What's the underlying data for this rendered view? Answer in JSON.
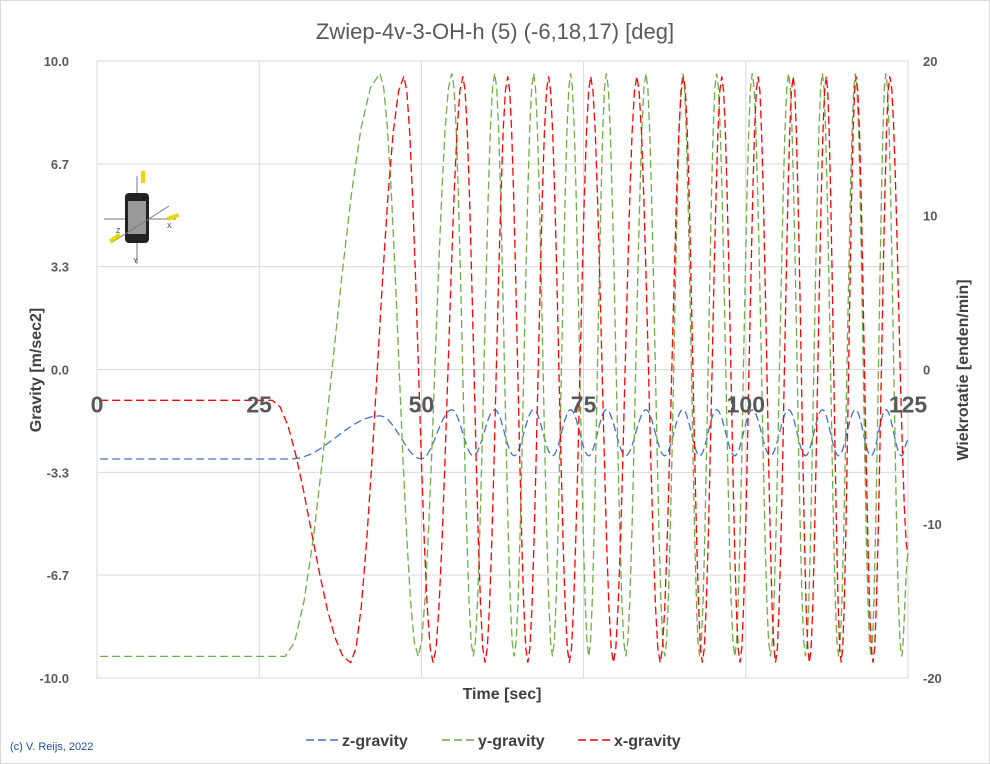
{
  "chart_data": {
    "type": "line",
    "title": "Zwiep-4v-3-OH-h (5) (-6,18,17) [deg]",
    "xlabel": "Time [sec]",
    "ylabel": "Gravity  [m/sec2]",
    "y2label": "Wiekrotatie  [enden/min]",
    "xlim": [
      0,
      125
    ],
    "ylim": [
      -10,
      10
    ],
    "y2lim": [
      -20,
      20
    ],
    "x_ticks": [
      "0",
      "25",
      "50",
      "75",
      "100",
      "125"
    ],
    "y_ticks": [
      "10.0",
      "6.7",
      "3.3",
      "0.0",
      "-3.3",
      "-6.7",
      "-10.0"
    ],
    "y2_ticks": [
      "20",
      "10",
      "0",
      "-10",
      "-20"
    ],
    "grid": true,
    "legend_position": "bottom",
    "note": "(c) V. Reijs, 2022",
    "series": [
      {
        "name": "z-gravity",
        "color": "#4472c4",
        "extrema": [
          [
            0.5,
            -2.9
          ],
          [
            30,
            -2.9
          ],
          [
            43.6,
            -1.5
          ],
          [
            50,
            -2.9
          ],
          [
            54.7,
            -1.3
          ],
          [
            58,
            -2.8
          ],
          [
            61.3,
            -1.3
          ],
          [
            64.3,
            -2.8
          ],
          [
            67.3,
            -1.3
          ],
          [
            70.2,
            -2.8
          ],
          [
            73,
            -1.3
          ],
          [
            75.8,
            -2.8
          ],
          [
            78.5,
            -1.3
          ],
          [
            81.5,
            -2.8
          ],
          [
            84.6,
            -1.3
          ],
          [
            87.5,
            -2.8
          ],
          [
            90.3,
            -1.3
          ],
          [
            92.9,
            -2.8
          ],
          [
            95.5,
            -1.3
          ],
          [
            98.3,
            -2.8
          ],
          [
            101,
            -1.3
          ],
          [
            103.8,
            -2.8
          ],
          [
            106.6,
            -1.3
          ],
          [
            109.2,
            -2.8
          ],
          [
            111.8,
            -1.3
          ],
          [
            114.3,
            -2.8
          ],
          [
            116.9,
            -1.3
          ],
          [
            119.3,
            -2.8
          ],
          [
            121.6,
            -1.3
          ],
          [
            124,
            -2.8
          ],
          [
            125,
            -2.3
          ]
        ]
      },
      {
        "name": "y-gravity",
        "color": "#70ad47",
        "extrema": [
          [
            0.5,
            -9.3
          ],
          [
            29,
            -9.3
          ],
          [
            43.6,
            9.6
          ],
          [
            49.5,
            -9.3
          ],
          [
            54.7,
            9.6
          ],
          [
            58,
            -9.3
          ],
          [
            61.3,
            9.6
          ],
          [
            64.3,
            -9.3
          ],
          [
            67.3,
            9.6
          ],
          [
            70.2,
            -9.3
          ],
          [
            73,
            9.6
          ],
          [
            75.8,
            -9.3
          ],
          [
            78.5,
            9.6
          ],
          [
            81.5,
            -9.3
          ],
          [
            84.6,
            9.6
          ],
          [
            87.5,
            -9.3
          ],
          [
            90.3,
            9.6
          ],
          [
            92.9,
            -9.3
          ],
          [
            95.5,
            9.6
          ],
          [
            98.3,
            -9.3
          ],
          [
            101,
            9.6
          ],
          [
            103.8,
            -9.3
          ],
          [
            106.6,
            9.6
          ],
          [
            109.2,
            -9.3
          ],
          [
            111.8,
            9.6
          ],
          [
            114.3,
            -9.3
          ],
          [
            116.9,
            9.6
          ],
          [
            119.3,
            -9.3
          ],
          [
            121.6,
            9.6
          ],
          [
            124,
            -9.3
          ],
          [
            125,
            -6
          ]
        ]
      },
      {
        "name": "x-gravity",
        "color": "#ff0000",
        "extrema": [
          [
            0.5,
            -1
          ],
          [
            27,
            -1
          ],
          [
            39.1,
            -9.5
          ],
          [
            47.3,
            9.5
          ],
          [
            51.8,
            -9.5
          ],
          [
            56.4,
            9.5
          ],
          [
            59.8,
            -9.5
          ],
          [
            63.3,
            9.5
          ],
          [
            66.4,
            -9.5
          ],
          [
            69.6,
            9.5
          ],
          [
            72.8,
            -9.5
          ],
          [
            76.1,
            9.5
          ],
          [
            79.6,
            -9.5
          ],
          [
            83.2,
            9.5
          ],
          [
            86.8,
            -9.5
          ],
          [
            90.4,
            9.5
          ],
          [
            93.3,
            -9.5
          ],
          [
            96.3,
            9.5
          ],
          [
            99.1,
            -9.5
          ],
          [
            101.9,
            9.5
          ],
          [
            104.6,
            -9.5
          ],
          [
            107.3,
            9.5
          ],
          [
            109.8,
            -9.5
          ],
          [
            112.4,
            9.5
          ],
          [
            114.7,
            -9.5
          ],
          [
            117,
            9.5
          ],
          [
            119.6,
            -9.5
          ],
          [
            122.2,
            9.5
          ],
          [
            125,
            -6
          ]
        ]
      }
    ]
  }
}
